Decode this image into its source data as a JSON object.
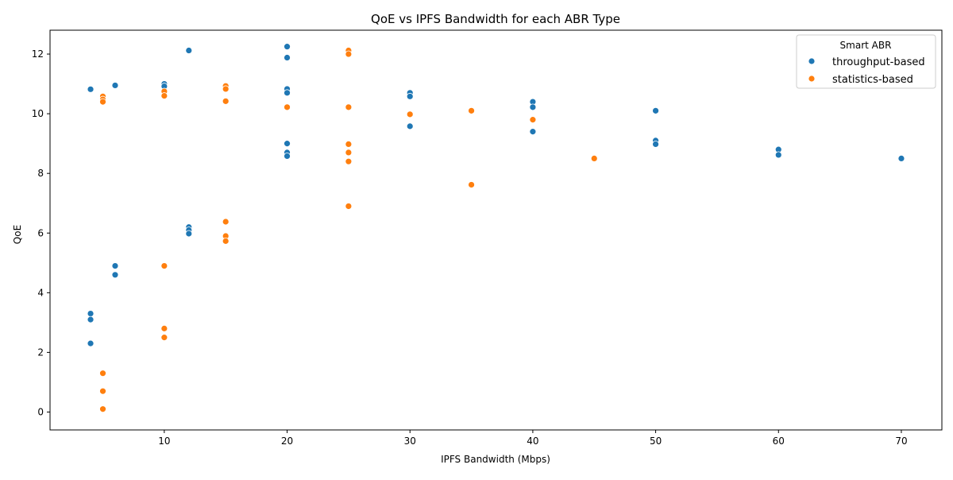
{
  "chart_data": {
    "type": "scatter",
    "title": "QoE vs IPFS Bandwidth for each ABR Type",
    "xlabel": "IPFS Bandwidth (Mbps)",
    "ylabel": "QoE",
    "xlim": [
      0.7,
      73.3
    ],
    "ylim": [
      -0.6,
      12.8
    ],
    "xticks": [
      10,
      20,
      30,
      40,
      50,
      60,
      70
    ],
    "yticks": [
      0,
      2,
      4,
      6,
      8,
      10,
      12
    ],
    "grid": false,
    "legend": {
      "title": "Smart ABR",
      "placement": "top-right"
    },
    "series": [
      {
        "name": "throughput-based",
        "color": "#1f77b4",
        "points": [
          [
            4,
            10.82
          ],
          [
            4,
            3.3
          ],
          [
            4,
            3.1
          ],
          [
            4,
            2.3
          ],
          [
            6,
            10.95
          ],
          [
            6,
            4.9
          ],
          [
            6,
            4.6
          ],
          [
            10,
            11.0
          ],
          [
            10,
            10.92
          ],
          [
            12,
            12.12
          ],
          [
            12,
            6.2
          ],
          [
            12,
            6.1
          ],
          [
            12,
            5.98
          ],
          [
            20,
            12.25
          ],
          [
            20,
            11.88
          ],
          [
            20,
            10.83
          ],
          [
            20,
            10.7
          ],
          [
            20,
            9.0
          ],
          [
            20,
            8.7
          ],
          [
            20,
            8.58
          ],
          [
            30,
            10.7
          ],
          [
            30,
            10.58
          ],
          [
            30,
            9.58
          ],
          [
            40,
            10.4
          ],
          [
            40,
            10.22
          ],
          [
            40,
            9.4
          ],
          [
            50,
            10.1
          ],
          [
            50,
            9.1
          ],
          [
            50,
            8.98
          ],
          [
            60,
            8.8
          ],
          [
            60,
            8.62
          ],
          [
            70,
            8.5
          ]
        ]
      },
      {
        "name": "statistics-based",
        "color": "#ff7f0e",
        "points": [
          [
            5,
            10.58
          ],
          [
            5,
            10.48
          ],
          [
            5,
            10.4
          ],
          [
            5,
            1.3
          ],
          [
            5,
            0.7
          ],
          [
            5,
            0.1
          ],
          [
            10,
            10.75
          ],
          [
            10,
            10.6
          ],
          [
            10,
            4.9
          ],
          [
            10,
            2.8
          ],
          [
            10,
            2.5
          ],
          [
            15,
            10.93
          ],
          [
            15,
            10.83
          ],
          [
            15,
            10.42
          ],
          [
            15,
            6.38
          ],
          [
            15,
            5.9
          ],
          [
            15,
            5.73
          ],
          [
            20,
            10.22
          ],
          [
            25,
            12.12
          ],
          [
            25,
            12.0
          ],
          [
            25,
            10.22
          ],
          [
            25,
            8.98
          ],
          [
            25,
            8.7
          ],
          [
            25,
            8.4
          ],
          [
            25,
            6.9
          ],
          [
            30,
            9.98
          ],
          [
            35,
            10.1
          ],
          [
            35,
            7.62
          ],
          [
            40,
            9.8
          ],
          [
            45,
            8.5
          ]
        ]
      }
    ]
  }
}
